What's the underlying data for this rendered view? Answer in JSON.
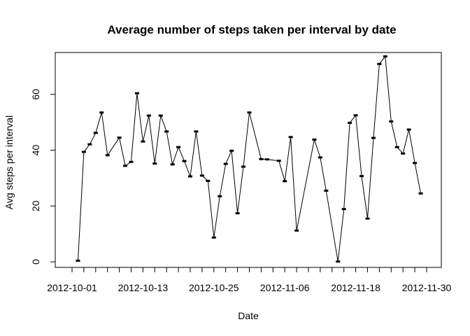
{
  "chart_data": {
    "type": "line",
    "title": "Average number of steps taken per interval by date",
    "xlabel": "Date",
    "ylabel": "Avg steps per interval",
    "x_start": "2012-10-01",
    "x": [
      "2012-10-02",
      "2012-10-03",
      "2012-10-04",
      "2012-10-05",
      "2012-10-06",
      "2012-10-07",
      "2012-10-09",
      "2012-10-10",
      "2012-10-11",
      "2012-10-12",
      "2012-10-13",
      "2012-10-14",
      "2012-10-15",
      "2012-10-16",
      "2012-10-17",
      "2012-10-18",
      "2012-10-19",
      "2012-10-20",
      "2012-10-21",
      "2012-10-22",
      "2012-10-23",
      "2012-10-24",
      "2012-10-25",
      "2012-10-26",
      "2012-10-27",
      "2012-10-28",
      "2012-10-29",
      "2012-10-30",
      "2012-10-31",
      "2012-11-02",
      "2012-11-03",
      "2012-11-05",
      "2012-11-06",
      "2012-11-07",
      "2012-11-08",
      "2012-11-11",
      "2012-11-12",
      "2012-11-13",
      "2012-11-15",
      "2012-11-16",
      "2012-11-17",
      "2012-11-18",
      "2012-11-19",
      "2012-11-20",
      "2012-11-21",
      "2012-11-22",
      "2012-11-23",
      "2012-11-24",
      "2012-11-25",
      "2012-11-26",
      "2012-11-27",
      "2012-11-28",
      "2012-11-29"
    ],
    "values": [
      0.4,
      39.4,
      42.1,
      46.2,
      53.5,
      38.2,
      44.5,
      34.4,
      35.8,
      60.4,
      43.1,
      52.4,
      35.2,
      52.4,
      46.7,
      34.9,
      41.1,
      36.1,
      30.6,
      46.7,
      30.9,
      29.0,
      8.7,
      23.5,
      35.1,
      39.8,
      17.4,
      34.1,
      53.5,
      36.8,
      36.7,
      36.2,
      28.9,
      44.7,
      11.2,
      43.8,
      37.4,
      25.5,
      0.1,
      18.9,
      49.8,
      52.5,
      30.7,
      15.5,
      44.4,
      70.9,
      73.6,
      50.3,
      41.1,
      38.8,
      47.4,
      35.4,
      24.5
    ],
    "x_tick_labels": [
      "2012-10-01",
      "2012-10-13",
      "2012-10-25",
      "2012-11-06",
      "2012-11-18",
      "2012-11-30"
    ],
    "x_tick_label_offsets": [
      0,
      12,
      24,
      36,
      48,
      60
    ],
    "x_minor_ticks_every_days": 2,
    "x_minor_tick_count": 31,
    "xlim": [
      "2012-10-01",
      "2012-11-30"
    ],
    "y_ticks": [
      0,
      20,
      40,
      60
    ],
    "y_tick_labels": [
      "0",
      "20",
      "40",
      "60"
    ],
    "ylim": [
      -2,
      75
    ],
    "grid": false,
    "line_color": "#000000"
  }
}
